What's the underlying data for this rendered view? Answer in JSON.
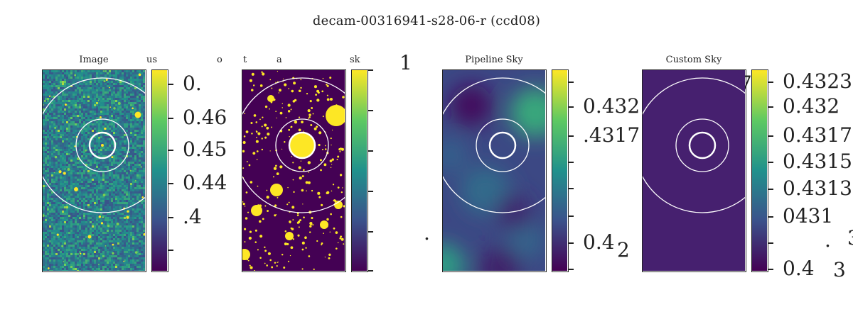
{
  "title": "decam-00316941-s28-06-r (ccd08)",
  "colormap": {
    "name": "viridis",
    "stops": [
      "#440154",
      "#3b528b",
      "#21918c",
      "#5ec962",
      "#fde725"
    ]
  },
  "stray_labels": [
    "us",
    "o",
    "t",
    "a",
    "sk",
    "1",
    ".",
    "4",
    "2",
    "0",
    "7",
    "0",
    "0",
    "0",
    ".",
    "3",
    "3"
  ],
  "chart_data": [
    {
      "type": "heatmap",
      "panel": "image",
      "title": "Image",
      "description": "noisy CCD cutout with stars, three concentric annulus circles",
      "colorbar_ticks": [
        "0.",
        "0.46",
        "0.45",
        "0.44",
        ".4",
        ""
      ]
    },
    {
      "type": "heatmap",
      "panel": "mask",
      "title": "",
      "description": "binary mask: masked sources bright yellow on dark background",
      "colorbar_ticks": [
        "",
        "",
        "",
        "",
        "",
        ""
      ]
    },
    {
      "type": "heatmap",
      "panel": "pipeline-sky",
      "title": "Pipeline Sky",
      "colorbar_ticks": [
        "",
        "0.432",
        ".4317",
        "",
        "",
        "",
        "0.4",
        ""
      ]
    },
    {
      "type": "heatmap",
      "panel": "custom-sky",
      "title": "Custom Sky",
      "description": "uniform sky level",
      "colorbar_ticks": [
        "0.4323",
        "0.432",
        "0.4317",
        "0.4315",
        "0.4313",
        "0431",
        "",
        "0.4"
      ]
    }
  ]
}
